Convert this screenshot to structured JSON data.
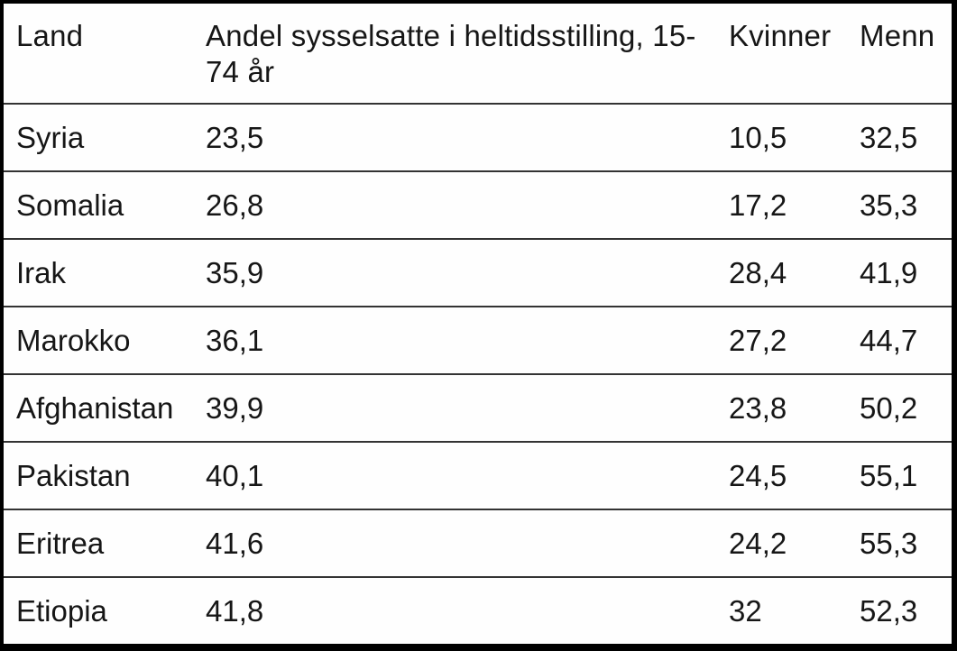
{
  "table": {
    "columns": [
      "Land",
      "Andel sysselsatte i heltidsstilling, 15-74 år",
      "Kvinner",
      "Menn"
    ],
    "rows": [
      {
        "land": "Syria",
        "andel": "23,5",
        "kvinner": "10,5",
        "menn": "32,5"
      },
      {
        "land": "Somalia",
        "andel": "26,8",
        "kvinner": "17,2",
        "menn": "35,3"
      },
      {
        "land": "Irak",
        "andel": "35,9",
        "kvinner": "28,4",
        "menn": "41,9"
      },
      {
        "land": "Marokko",
        "andel": "36,1",
        "kvinner": "27,2",
        "menn": "44,7"
      },
      {
        "land": "Afghanistan",
        "andel": "39,9",
        "kvinner": "23,8",
        "menn": "50,2"
      },
      {
        "land": "Pakistan",
        "andel": "40,1",
        "kvinner": "24,5",
        "menn": "55,1"
      },
      {
        "land": "Eritrea",
        "andel": "41,6",
        "kvinner": "24,2",
        "menn": "55,3"
      },
      {
        "land": "Etiopia",
        "andel": "41,8",
        "kvinner": "32",
        "menn": "52,3"
      }
    ]
  },
  "chart_data": {
    "type": "table",
    "columns": [
      "Land",
      "Andel sysselsatte i heltidsstilling, 15-74 år",
      "Kvinner",
      "Menn"
    ],
    "rows": [
      [
        "Syria",
        23.5,
        10.5,
        32.5
      ],
      [
        "Somalia",
        26.8,
        17.2,
        35.3
      ],
      [
        "Irak",
        35.9,
        28.4,
        41.9
      ],
      [
        "Marokko",
        36.1,
        27.2,
        44.7
      ],
      [
        "Afghanistan",
        39.9,
        23.8,
        50.2
      ],
      [
        "Pakistan",
        40.1,
        24.5,
        55.1
      ],
      [
        "Eritrea",
        41.6,
        24.2,
        55.3
      ],
      [
        "Etiopia",
        41.8,
        32,
        52.3
      ]
    ]
  },
  "colors": {
    "outer_border": "#000000",
    "row_separator": "#333333",
    "text": "#161616",
    "background": "#fefefe"
  }
}
